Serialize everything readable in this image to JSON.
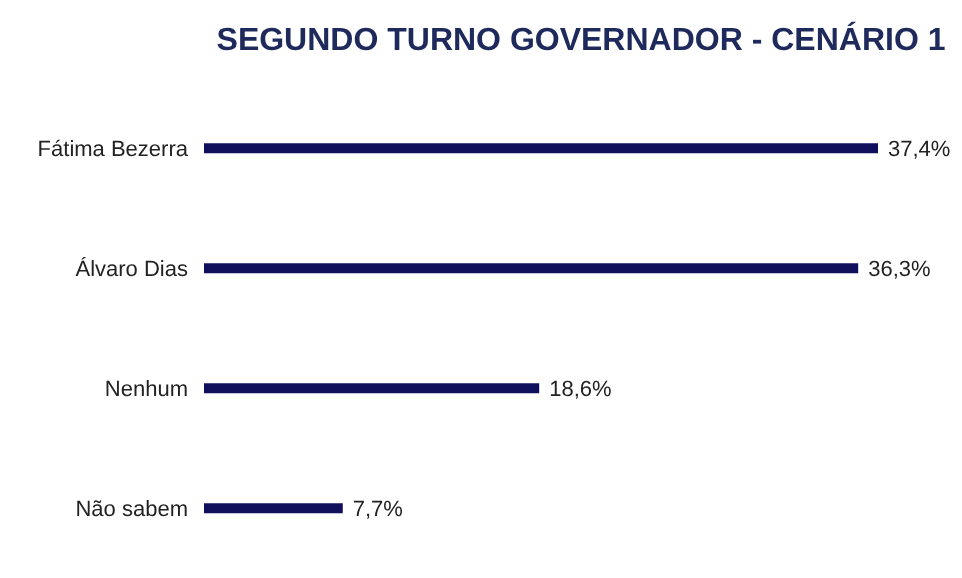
{
  "chart_data": {
    "type": "bar",
    "orientation": "horizontal",
    "title": "SEGUNDO TURNO GOVERNADOR - CENÁRIO 1",
    "categories": [
      "Fátima Bezerra",
      "Álvaro Dias",
      "Nenhum",
      "Não sabem"
    ],
    "values": [
      37.4,
      36.3,
      18.6,
      7.7
    ],
    "value_labels": [
      "37,4%",
      "36,3%",
      "18,6%",
      "7,7%"
    ],
    "color": "#0f0f5c",
    "grid": false,
    "legend": false
  }
}
